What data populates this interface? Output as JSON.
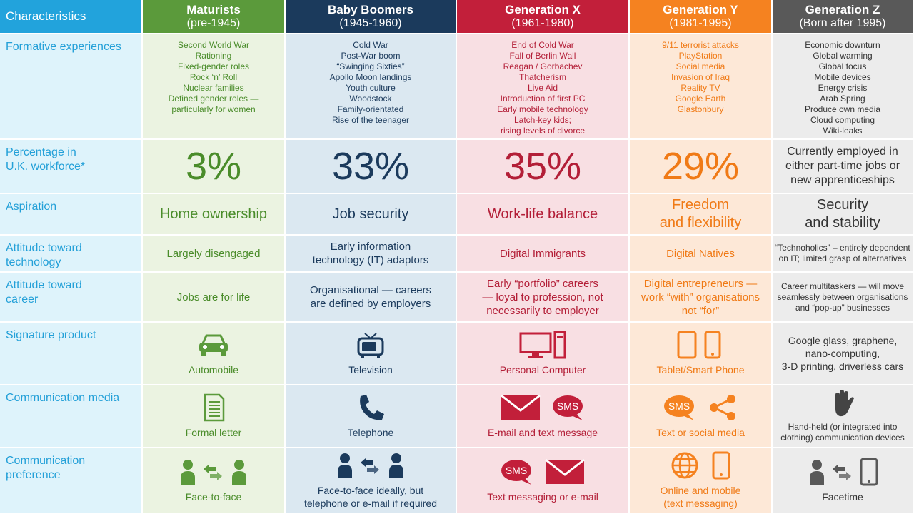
{
  "header": {
    "label": "Characteristics",
    "columns": [
      {
        "name": "Maturists",
        "period": "(pre-1945)"
      },
      {
        "name": "Baby Boomers",
        "period": "(1945-1960)"
      },
      {
        "name": "Generation X",
        "period": "(1961-1980)"
      },
      {
        "name": "Generation Y",
        "period": "(1981-1995)"
      },
      {
        "name": "Generation Z",
        "period": "(Born after 1995)"
      }
    ]
  },
  "rows": [
    {
      "label": [
        "Formative experiences"
      ],
      "cells": [
        {
          "lines": [
            "Second World War",
            "Rationing",
            "Fixed-gender roles",
            "Rock ‘n’ Roll",
            "Nuclear families",
            "Defined gender roles —",
            "particularly for women"
          ]
        },
        {
          "lines": [
            "Cold War",
            "Post-War boom",
            "“Swinging Sixties”",
            "Apollo Moon landings",
            "Youth culture",
            "Woodstock",
            "Family-orientated",
            "Rise of the teenager"
          ]
        },
        {
          "lines": [
            "End of Cold War",
            "Fall of Berlin Wall",
            "Reagan / Gorbachev",
            "Thatcherism",
            "Live Aid",
            "Introduction of first PC",
            "Early mobile technology",
            "Latch-key kids;",
            "rising levels of divorce"
          ]
        },
        {
          "lines": [
            "9/11 terrorist attacks",
            "PlayStation",
            "Social media",
            "Invasion of Iraq",
            "Reality TV",
            "Google Earth",
            "Glastonbury"
          ]
        },
        {
          "lines": [
            "Economic downturn",
            "Global warming",
            "Global focus",
            "Mobile devices",
            "Energy crisis",
            "Arab Spring",
            "Produce own media",
            "Cloud computing",
            "Wiki-leaks"
          ]
        }
      ]
    },
    {
      "label": [
        "Percentage in",
        "U.K. workforce*"
      ],
      "cells": [
        {
          "lines": [
            "3%"
          ]
        },
        {
          "lines": [
            "33%"
          ]
        },
        {
          "lines": [
            "35%"
          ]
        },
        {
          "lines": [
            "29%"
          ]
        },
        {
          "lines": [
            "Currently employed in",
            "either part-time jobs or",
            "new apprenticeships"
          ]
        }
      ]
    },
    {
      "label": [
        "Aspiration"
      ],
      "cells": [
        {
          "lines": [
            "Home ownership"
          ]
        },
        {
          "lines": [
            "Job security"
          ]
        },
        {
          "lines": [
            "Work-life balance"
          ]
        },
        {
          "lines": [
            "Freedom",
            "and flexibility"
          ]
        },
        {
          "lines": [
            "Security",
            "and stability"
          ]
        }
      ]
    },
    {
      "label": [
        "Attitude toward",
        "technology"
      ],
      "cells": [
        {
          "lines": [
            "Largely disengaged"
          ]
        },
        {
          "lines": [
            "Early information",
            "technology (IT) adaptors"
          ]
        },
        {
          "lines": [
            "Digital Immigrants"
          ]
        },
        {
          "lines": [
            "Digital Natives"
          ]
        },
        {
          "lines": [
            "“Technoholics” – entirely dependent",
            "on IT; limited grasp of alternatives"
          ]
        }
      ]
    },
    {
      "label": [
        "Attitude toward",
        "career"
      ],
      "cells": [
        {
          "lines": [
            "Jobs are for life"
          ]
        },
        {
          "lines": [
            "Organisational — careers",
            "are defined by employers"
          ]
        },
        {
          "lines": [
            "Early “portfolio” careers",
            "— loyal to profession, not",
            "necessarily to employer"
          ]
        },
        {
          "lines": [
            "Digital entrepreneurs —",
            "work “with” organisations",
            "not “for”"
          ]
        },
        {
          "lines": [
            "Career multitaskers — will move",
            "seamlessly between organisations",
            "and “pop-up” businesses"
          ]
        }
      ]
    },
    {
      "label": [
        "Signature product"
      ],
      "cells": [
        {
          "lines": [
            "Automobile"
          ]
        },
        {
          "lines": [
            "Television"
          ]
        },
        {
          "lines": [
            "Personal Computer"
          ]
        },
        {
          "lines": [
            "Tablet/Smart Phone"
          ]
        },
        {
          "lines": [
            "Google glass, graphene,",
            "nano-computing,",
            "3-D printing, driverless cars"
          ]
        }
      ]
    },
    {
      "label": [
        "Communication media"
      ],
      "cells": [
        {
          "lines": [
            "Formal letter"
          ]
        },
        {
          "lines": [
            "Telephone"
          ]
        },
        {
          "lines": [
            "E-mail and text message"
          ],
          "badge": "SMS"
        },
        {
          "lines": [
            "Text or social media"
          ],
          "badge": "SMS"
        },
        {
          "lines": [
            "Hand-held (or integrated into",
            "clothing) communication devices"
          ]
        }
      ]
    },
    {
      "label": [
        "Communication",
        "preference"
      ],
      "cells": [
        {
          "lines": [
            "Face-to-face"
          ]
        },
        {
          "lines": [
            "Face-to-face ideally, but",
            "telephone or e-mail if required"
          ]
        },
        {
          "lines": [
            "Text messaging or e-mail"
          ],
          "badge": "SMS"
        },
        {
          "lines": [
            "Online and mobile",
            "(text messaging)"
          ]
        },
        {
          "lines": [
            "Facetime"
          ]
        }
      ]
    }
  ]
}
